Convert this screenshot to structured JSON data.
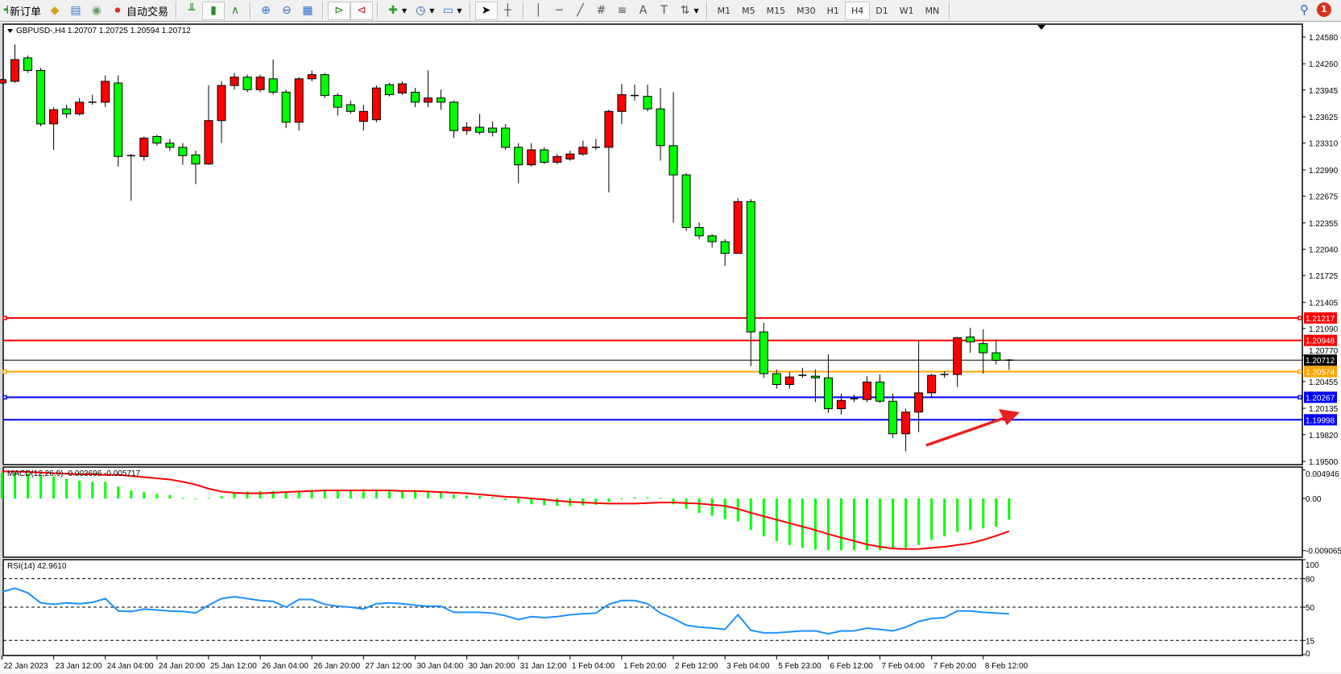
{
  "toolbar": {
    "new_order": "新订单",
    "auto_trading": "自动交易",
    "timeframes": [
      "M1",
      "M5",
      "M15",
      "M30",
      "H1",
      "H4",
      "D1",
      "W1",
      "MN"
    ],
    "active_timeframe": "H4",
    "notification_count": "1",
    "icons": [
      "new-order-icon",
      "market-watch-icon",
      "navigator-icon",
      "signals-icon",
      "auto-trading-icon",
      "bar-chart-icon",
      "candlestick-icon",
      "line-chart-icon",
      "zoom-in-icon",
      "zoom-out-icon",
      "tile-windows-icon",
      "auto-scroll-icon",
      "chart-shift-icon",
      "indicators-icon",
      "periods-icon",
      "templates-icon",
      "cursor-icon",
      "crosshair-icon",
      "vertical-line-icon",
      "horizontal-line-icon",
      "trendline-icon",
      "fibo-channel-icon",
      "fibo-retracement-icon",
      "text-icon",
      "text-label-icon",
      "arrows-icon",
      "search-icon",
      "notification-icon"
    ]
  },
  "chart": {
    "header": "GBPUSD-,H4  1.20707 1.20725 1.20594 1.20712",
    "macd_label": "MACD(12,26,9) -0.003696 -0.005717",
    "rsi_label": "RSI(14) 42.9610"
  },
  "chart_data": {
    "type": "candlestick",
    "symbol": "GBPUSD-",
    "timeframe": "H4",
    "bull_color": "#ff0000",
    "bear_color": "#00ff00",
    "ylim": [
      1.195,
      1.2458
    ],
    "price_ticks": [
      "1.24580",
      "1.24260",
      "1.23945",
      "1.23625",
      "1.23310",
      "1.22990",
      "1.22675",
      "1.22355",
      "1.22040",
      "1.21725",
      "1.21405",
      "1.21090",
      "1.20770",
      "1.20455",
      "1.20135",
      "1.19820",
      "1.19500"
    ],
    "time_labels": [
      "22 Jan 2023",
      "23 Jan 12:00",
      "24 Jan 04:00",
      "24 Jan 20:00",
      "25 Jan 12:00",
      "26 Jan 04:00",
      "26 Jan 20:00",
      "27 Jan 12:00",
      "30 Jan 04:00",
      "30 Jan 20:00",
      "31 Jan 12:00",
      "1 Feb 04:00",
      "1 Feb 20:00",
      "2 Feb 12:00",
      "3 Feb 04:00",
      "5 Feb 23:00",
      "6 Feb 12:00",
      "7 Feb 04:00",
      "7 Feb 20:00",
      "8 Feb 12:00"
    ],
    "time_label_every_n_bars": 4,
    "ohlc": [
      [
        1.2403,
        1.2408,
        1.2402,
        1.2407
      ],
      [
        1.2405,
        1.2449,
        1.2403,
        1.2431
      ],
      [
        1.2433,
        1.2436,
        1.2415,
        1.2418
      ],
      [
        1.2418,
        1.2421,
        1.2351,
        1.2354
      ],
      [
        1.2354,
        1.2374,
        1.2323,
        1.2371
      ],
      [
        1.2372,
        1.2377,
        1.2361,
        1.2366
      ],
      [
        1.2366,
        1.2385,
        1.2364,
        1.238
      ],
      [
        1.238,
        1.2389,
        1.2377,
        1.238
      ],
      [
        1.238,
        1.2412,
        1.2374,
        1.2405
      ],
      [
        1.2403,
        1.2412,
        1.2303,
        1.2315
      ],
      [
        1.2315,
        1.2318,
        1.2262,
        1.2316
      ],
      [
        1.2315,
        1.2339,
        1.231,
        1.2337
      ],
      [
        1.2339,
        1.2341,
        1.2328,
        1.2331
      ],
      [
        1.2331,
        1.2336,
        1.2322,
        1.2326
      ],
      [
        1.2326,
        1.2331,
        1.2305,
        1.2316
      ],
      [
        1.2317,
        1.2322,
        1.2282,
        1.2306
      ],
      [
        1.2306,
        1.24,
        1.2305,
        1.2358
      ],
      [
        1.2358,
        1.2405,
        1.2331,
        1.24
      ],
      [
        1.24,
        1.2415,
        1.2395,
        1.241
      ],
      [
        1.241,
        1.2413,
        1.2392,
        1.2395
      ],
      [
        1.2395,
        1.2413,
        1.2392,
        1.241
      ],
      [
        1.2408,
        1.2431,
        1.2389,
        1.2392
      ],
      [
        1.2392,
        1.2395,
        1.2349,
        1.2356
      ],
      [
        1.2356,
        1.241,
        1.2346,
        1.2408
      ],
      [
        1.2408,
        1.2418,
        1.2405,
        1.2413
      ],
      [
        1.2413,
        1.2415,
        1.2385,
        1.2388
      ],
      [
        1.2388,
        1.2391,
        1.2364,
        1.2374
      ],
      [
        1.2377,
        1.2382,
        1.2366,
        1.2369
      ],
      [
        1.2357,
        1.2377,
        1.2346,
        1.2369
      ],
      [
        1.2359,
        1.24,
        1.2356,
        1.2397
      ],
      [
        1.2401,
        1.2403,
        1.2387,
        1.2389
      ],
      [
        1.2391,
        1.2405,
        1.2389,
        1.2402
      ],
      [
        1.2392,
        1.2397,
        1.2374,
        1.238
      ],
      [
        1.238,
        1.2418,
        1.2374,
        1.2385
      ],
      [
        1.2385,
        1.2395,
        1.2371,
        1.238
      ],
      [
        1.238,
        1.2382,
        1.2337,
        1.2346
      ],
      [
        1.2346,
        1.2356,
        1.2341,
        1.235
      ],
      [
        1.235,
        1.2366,
        1.2341,
        1.2344
      ],
      [
        1.2349,
        1.2357,
        1.2339,
        1.2344
      ],
      [
        1.2349,
        1.2354,
        1.2323,
        1.2326
      ],
      [
        1.2326,
        1.2331,
        1.2283,
        1.2305
      ],
      [
        1.2305,
        1.2331,
        1.2303,
        1.2323
      ],
      [
        1.2323,
        1.2326,
        1.2306,
        1.2308
      ],
      [
        1.2308,
        1.2318,
        1.2306,
        1.2315
      ],
      [
        1.2312,
        1.2322,
        1.231,
        1.2318
      ],
      [
        1.2318,
        1.2334,
        1.2316,
        1.2326
      ],
      [
        1.2326,
        1.2336,
        1.2323,
        1.2326
      ],
      [
        1.2326,
        1.2371,
        1.2272,
        1.2369
      ],
      [
        1.2369,
        1.2402,
        1.2354,
        1.2389
      ],
      [
        1.2387,
        1.2401,
        1.2382,
        1.2388
      ],
      [
        1.2387,
        1.2401,
        1.2369,
        1.2372
      ],
      [
        1.2372,
        1.2397,
        1.231,
        1.2328
      ],
      [
        1.2328,
        1.2392,
        1.2236,
        1.2293
      ],
      [
        1.2293,
        1.2295,
        1.2226,
        1.223
      ],
      [
        1.223,
        1.2236,
        1.2216,
        1.222
      ],
      [
        1.222,
        1.2222,
        1.2206,
        1.2213
      ],
      [
        1.2213,
        1.2216,
        1.2184,
        1.2199
      ],
      [
        1.2199,
        1.2265,
        1.2199,
        1.2261
      ],
      [
        1.2261,
        1.2264,
        1.2064,
        1.2105
      ],
      [
        1.2105,
        1.2116,
        1.205,
        1.2055
      ],
      [
        1.2055,
        1.206,
        1.2037,
        1.2042
      ],
      [
        1.2042,
        1.2057,
        1.2037,
        1.2051
      ],
      [
        1.2052,
        1.2062,
        1.205,
        1.2053
      ],
      [
        1.2052,
        1.206,
        1.2021,
        1.205
      ],
      [
        1.205,
        1.2078,
        1.2008,
        1.2013
      ],
      [
        1.2013,
        1.2031,
        1.2006,
        1.2023
      ],
      [
        1.2024,
        1.203,
        1.2021,
        1.2025
      ],
      [
        1.2024,
        1.2052,
        1.2021,
        1.2045
      ],
      [
        1.2045,
        1.2054,
        1.202,
        1.2022
      ],
      [
        1.2022,
        1.2031,
        1.1978,
        1.1983
      ],
      [
        1.1983,
        1.2013,
        1.1962,
        1.2009
      ],
      [
        1.2009,
        1.2095,
        1.1985,
        1.2032
      ],
      [
        1.2032,
        1.2055,
        1.2026,
        1.2053
      ],
      [
        1.2053,
        1.2058,
        1.205,
        1.2054
      ],
      [
        1.2054,
        1.2099,
        1.2039,
        1.2098
      ],
      [
        1.2099,
        1.211,
        1.208,
        1.2093
      ],
      [
        1.2091,
        1.2108,
        1.2055,
        1.208
      ],
      [
        1.208,
        1.2096,
        1.2066,
        1.2071
      ],
      [
        1.20707,
        1.20725,
        1.20594,
        1.20712
      ]
    ],
    "horizontal_lines": [
      {
        "price": "1.21217",
        "value": 1.21217,
        "color": "#ff0000",
        "marker": true
      },
      {
        "price": "1.20948",
        "value": 1.20948,
        "color": "#ff0000",
        "marker": false
      },
      {
        "price": "1.20712",
        "value": 1.20712,
        "color": "#000000",
        "marker": false
      },
      {
        "price": "1.20574",
        "value": 1.20574,
        "color": "#ffa500",
        "marker": true
      },
      {
        "price": "1.20267",
        "value": 1.20267,
        "color": "#0000ff",
        "marker": true
      },
      {
        "price": "1.19998",
        "value": 1.19998,
        "color": "#0000ff",
        "marker": false
      }
    ],
    "macd": {
      "params": "12,26,9",
      "ylim": [
        -0.009065,
        0.004946
      ],
      "ticks": [
        "0.004946",
        "0.00",
        "-0.009065"
      ],
      "tick_values": [
        0.004946,
        0,
        -0.009065
      ],
      "histogram_color": "#00ff00",
      "signal_color": "#ff0000",
      "histogram": [
        0.0045,
        0.0045,
        0.0043,
        0.0041,
        0.0038,
        0.0034,
        0.0031,
        0.0029,
        0.0029,
        0.0021,
        0.0014,
        0.0011,
        0.0008,
        0.0006,
        0.0001,
        -0.0001,
        0.0001,
        0.0004,
        0.001,
        0.0012,
        0.0013,
        0.0013,
        0.0012,
        0.0013,
        0.0015,
        0.0015,
        0.0014,
        0.0013,
        0.0012,
        0.0013,
        0.0013,
        0.0013,
        0.0012,
        0.0011,
        0.001,
        0.0007,
        0.0005,
        0.0004,
        0.0002,
        -0.0003,
        -0.0008,
        -0.001,
        -0.0012,
        -0.0013,
        -0.0013,
        -0.0012,
        -0.0011,
        -0.0006,
        -0.0001,
        0.0002,
        0.0002,
        0.0001,
        -0.001,
        -0.0018,
        -0.0025,
        -0.003,
        -0.0036,
        -0.004,
        -0.0055,
        -0.0066,
        -0.0074,
        -0.0081,
        -0.0086,
        -0.0089,
        -0.009,
        -0.009,
        -0.009,
        -0.009,
        -0.009,
        -0.0088,
        -0.0086,
        -0.0081,
        -0.0072,
        -0.0066,
        -0.0058,
        -0.0055,
        -0.0052,
        -0.0049,
        -0.0037
      ],
      "signal": [
        0.0047,
        0.0047,
        0.0046,
        0.0045,
        0.0044,
        0.0043,
        0.0042,
        0.0042,
        0.0041,
        0.0041,
        0.0039,
        0.0037,
        0.0035,
        0.0033,
        0.0029,
        0.0024,
        0.0017,
        0.0012,
        0.001,
        0.0009,
        0.0009,
        0.001,
        0.0011,
        0.0012,
        0.0013,
        0.0014,
        0.0014,
        0.0014,
        0.0014,
        0.0014,
        0.0014,
        0.0013,
        0.0013,
        0.0012,
        0.0011,
        0.001,
        0.0009,
        0.0007,
        0.0005,
        0.0003,
        0.0002,
        0.0,
        -0.0002,
        -0.0004,
        -0.0006,
        -0.0007,
        -0.0008,
        -0.0009,
        -0.0009,
        -0.0009,
        -0.0008,
        -0.0007,
        -0.0007,
        -0.0008,
        -0.0009,
        -0.0011,
        -0.0013,
        -0.0018,
        -0.0025,
        -0.0031,
        -0.0037,
        -0.0043,
        -0.0049,
        -0.0055,
        -0.0062,
        -0.0068,
        -0.0074,
        -0.008,
        -0.0084,
        -0.0087,
        -0.0088,
        -0.0088,
        -0.0086,
        -0.0084,
        -0.0081,
        -0.0078,
        -0.0072,
        -0.0065,
        -0.0057
      ]
    },
    "rsi": {
      "period": 14,
      "ylim": [
        0,
        100
      ],
      "ticks": [
        "100",
        "80",
        "50",
        "15",
        "0"
      ],
      "tick_values": [
        100,
        80,
        50,
        15,
        0
      ],
      "levels": [
        80,
        50,
        15
      ],
      "color": "#1e90ff",
      "values": [
        66,
        70,
        65,
        54.5,
        53,
        54.5,
        53.6,
        55,
        59,
        46,
        45.5,
        48,
        47,
        46,
        45.5,
        44,
        52,
        59,
        61,
        59,
        57,
        56,
        50,
        58,
        58,
        53,
        51,
        50,
        48,
        53.6,
        54.5,
        53.6,
        52,
        51,
        51,
        44.6,
        44.6,
        44.6,
        43.7,
        41,
        37,
        40,
        39,
        40,
        42,
        43,
        43.7,
        53,
        57,
        57,
        53.6,
        43.7,
        38,
        31,
        29,
        28,
        26.6,
        42,
        25.7,
        23,
        23,
        24,
        25,
        25,
        22,
        25,
        25,
        28,
        26.6,
        25,
        29,
        35,
        38,
        39,
        46,
        46,
        44.6,
        43.7,
        42.96
      ]
    }
  }
}
